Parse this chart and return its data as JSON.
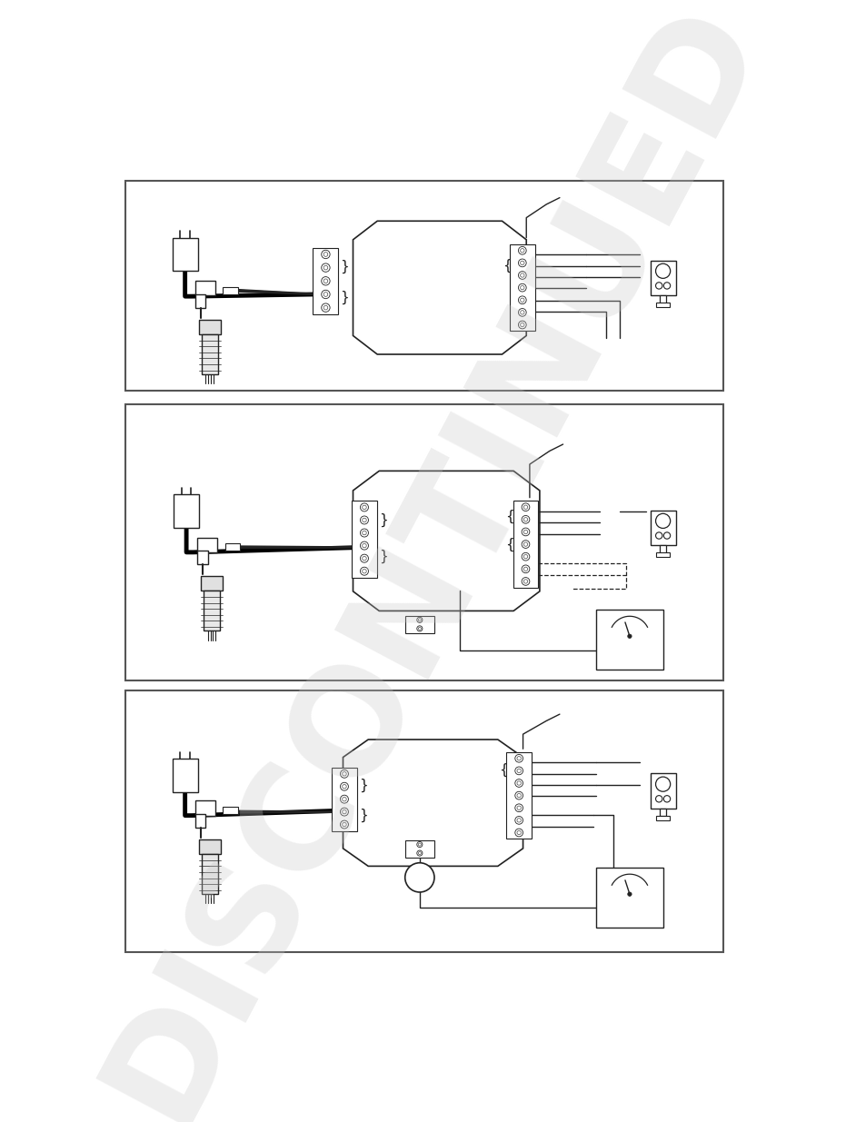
{
  "bg_color": "#ffffff",
  "border_color": "#555555",
  "line_color": "#222222",
  "watermark_color": "#c8c8c8",
  "watermark_text": "DISCONTINUED",
  "watermark_alpha": 0.3,
  "fig_w": 9.54,
  "fig_h": 12.35
}
